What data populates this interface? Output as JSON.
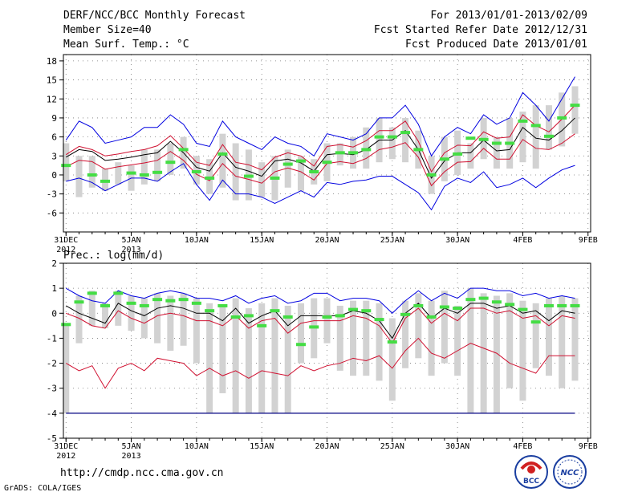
{
  "header": {
    "title_left": "DERF/NCC/BCC Monthly Forecast",
    "member_size": "Member Size=40",
    "variable": "Mean Surf. Temp.: °C",
    "title_right": "For 2013/01/01-2013/02/09",
    "fcst_started": "Fcst Started Refer Date 2012/12/31",
    "fcst_produced": "Fcst Produced Date 2013/01/01"
  },
  "footer": {
    "url": "http://cmdp.ncc.cma.gov.cn",
    "grads": "GrADS: COLA/IGES",
    "logo_bcc": "BCC",
    "logo_ncc": "NCC"
  },
  "colors": {
    "max": "#0000e0",
    "mean": "#000000",
    "band": "#d01030",
    "box": "#d2d2d2",
    "obs": "#44dd44",
    "zero": "#000080"
  },
  "chart_data": [
    {
      "type": "line",
      "title": "Mean Surf. Temp.: °C",
      "x": [
        1,
        2,
        3,
        4,
        5,
        6,
        7,
        8,
        9,
        10,
        11,
        12,
        13,
        14,
        15,
        16,
        17,
        18,
        19,
        20,
        21,
        22,
        23,
        24,
        25,
        26,
        27,
        28,
        29,
        30,
        31,
        32,
        33,
        34,
        35,
        36,
        37,
        38,
        39,
        40
      ],
      "xtick_labels": [
        {
          "x": 1,
          "text": "31DEC",
          "sub": "2012"
        },
        {
          "x": 6,
          "text": "5JAN",
          "sub": "2013"
        },
        {
          "x": 11,
          "text": "10JAN"
        },
        {
          "x": 16,
          "text": "15JAN"
        },
        {
          "x": 21,
          "text": "20JAN"
        },
        {
          "x": 26,
          "text": "25JAN"
        },
        {
          "x": 31,
          "text": "30JAN"
        },
        {
          "x": 36,
          "text": "4FEB"
        },
        {
          "x": 41,
          "text": "9FEB"
        }
      ],
      "ylim": [
        -9,
        19
      ],
      "yticks": [
        -6,
        -3,
        0,
        3,
        6,
        9,
        12,
        15,
        18
      ],
      "series": [
        {
          "name": "max",
          "values": [
            5.5,
            8.5,
            7.5,
            5,
            5.5,
            6,
            7.5,
            7.5,
            9.5,
            8,
            5,
            4.5,
            8.5,
            6,
            5,
            4,
            6,
            5,
            4.5,
            3,
            6.5,
            6,
            5.5,
            6.5,
            9,
            9,
            11,
            8,
            3,
            6,
            7.5,
            6.5,
            9.5,
            8,
            9,
            13,
            11,
            8.5,
            12,
            15.5
          ]
        },
        {
          "name": "band_upper",
          "values": [
            3.2,
            4.5,
            4,
            3,
            3.3,
            3.7,
            4,
            4.6,
            6.2,
            4.2,
            2,
            1.5,
            4.8,
            2,
            1.6,
            0.8,
            2.8,
            3.5,
            3,
            1.4,
            4.5,
            4.8,
            4.4,
            5.4,
            7,
            7,
            8.5,
            5.3,
            0.5,
            3.5,
            4.7,
            4.6,
            6.8,
            5.8,
            6,
            9.5,
            7.8,
            6.8,
            8.8,
            11
          ]
        },
        {
          "name": "mean",
          "values": [
            2.8,
            4,
            3.7,
            2.3,
            2.5,
            2.8,
            3.2,
            3.5,
            5.3,
            3.5,
            1.2,
            0.6,
            3.5,
            1.2,
            0.6,
            -0.2,
            2.2,
            2.5,
            1.9,
            0.6,
            3.2,
            3.4,
            3.2,
            4,
            5.5,
            5.5,
            7,
            4,
            -0.5,
            2.2,
            3.5,
            3.5,
            5.5,
            3.8,
            4,
            7.5,
            5.8,
            5.5,
            7,
            9
          ]
        },
        {
          "name": "band_lower",
          "values": [
            1.3,
            2.3,
            2.1,
            0.9,
            1.3,
            1.6,
            1.9,
            2.3,
            3.7,
            2.3,
            0.1,
            -0.9,
            1.8,
            -0.2,
            -0.7,
            -1.3,
            0.5,
            1.1,
            0.5,
            -0.8,
            1.8,
            2.1,
            1.8,
            2.6,
            4,
            4.4,
            5.1,
            2.8,
            -1.7,
            0.5,
            2,
            2.1,
            4.2,
            2.5,
            2.5,
            5.6,
            4.2,
            4,
            5,
            6.5
          ]
        },
        {
          "name": "min",
          "values": [
            -1,
            -0.5,
            -1.2,
            -2.5,
            -1.5,
            -0.5,
            -0.5,
            -1,
            0.5,
            1.8,
            -1.5,
            -4,
            -0.8,
            -3,
            -3,
            -3.5,
            -4.5,
            -3.5,
            -2.5,
            -3.5,
            -1.2,
            -1.5,
            -1,
            -0.8,
            -0.2,
            -0.2,
            -1.5,
            -2.8,
            -5.5,
            -1.8,
            -0.5,
            -1.2,
            0.5,
            -2,
            -1.5,
            -0.5,
            -2,
            -0.5,
            0.8,
            1.5
          ]
        },
        {
          "name": "obs",
          "values": [
            1.5,
            null,
            0,
            -1,
            null,
            0.3,
            0,
            0.4,
            2,
            4,
            0.5,
            -0.5,
            3.3,
            null,
            -0.2,
            null,
            -0.5,
            1.7,
            2.2,
            0.5,
            2,
            3.5,
            3.5,
            4,
            6,
            6,
            6.7,
            4,
            0,
            2.5,
            3.3,
            5.8,
            5.6,
            5,
            5,
            8.5,
            7.8,
            6.1,
            9,
            11
          ]
        }
      ],
      "boxes": [
        [
          -1,
          5
        ],
        [
          -3.5,
          3
        ],
        [
          -2,
          3
        ],
        [
          -2.5,
          1
        ],
        [
          -1.5,
          2
        ],
        [
          -2.5,
          1.5
        ],
        [
          -1.5,
          4
        ],
        [
          -1,
          4
        ],
        [
          0,
          5
        ],
        [
          1,
          6
        ],
        [
          -1.5,
          3
        ],
        [
          -3,
          2.5
        ],
        [
          -2,
          6.5
        ],
        [
          -4,
          5
        ],
        [
          -4,
          4
        ],
        [
          -3.5,
          2
        ],
        [
          -4,
          3
        ],
        [
          -2,
          4
        ],
        [
          -2.5,
          3
        ],
        [
          -1.5,
          2.5
        ],
        [
          -1,
          5
        ],
        [
          1.5,
          5
        ],
        [
          1,
          6
        ],
        [
          1,
          7.5
        ],
        [
          2,
          9
        ],
        [
          2.5,
          7.5
        ],
        [
          2,
          9
        ],
        [
          1,
          7
        ],
        [
          -3,
          3
        ],
        [
          -1,
          6
        ],
        [
          0,
          7
        ],
        [
          1,
          5
        ],
        [
          2.5,
          9
        ],
        [
          1,
          6
        ],
        [
          1,
          9
        ],
        [
          2,
          10
        ],
        [
          1,
          11
        ],
        [
          4,
          11
        ],
        [
          4.5,
          13
        ],
        [
          6.5,
          14
        ]
      ]
    },
    {
      "type": "line",
      "title": "Prec.: log(mm/d)",
      "x": [
        1,
        2,
        3,
        4,
        5,
        6,
        7,
        8,
        9,
        10,
        11,
        12,
        13,
        14,
        15,
        16,
        17,
        18,
        19,
        20,
        21,
        22,
        23,
        24,
        25,
        26,
        27,
        28,
        29,
        30,
        31,
        32,
        33,
        34,
        35,
        36,
        37,
        38,
        39,
        40
      ],
      "xtick_labels": [
        {
          "x": 1,
          "text": "31DEC",
          "sub": "2012"
        },
        {
          "x": 6,
          "text": "5JAN",
          "sub": "2013"
        },
        {
          "x": 11,
          "text": "10JAN"
        },
        {
          "x": 16,
          "text": "15JAN"
        },
        {
          "x": 21,
          "text": "20JAN"
        },
        {
          "x": 26,
          "text": "25JAN"
        },
        {
          "x": 31,
          "text": "30JAN"
        },
        {
          "x": 36,
          "text": "4FEB"
        },
        {
          "x": 41,
          "text": "9FEB"
        }
      ],
      "ylim": [
        -5,
        2
      ],
      "yticks": [
        -5,
        -4,
        -3,
        -2,
        -1,
        0,
        1,
        2
      ],
      "reference_line": -4,
      "series": [
        {
          "name": "max",
          "values": [
            1,
            0.7,
            0.5,
            0.4,
            0.9,
            0.7,
            0.6,
            0.8,
            0.9,
            0.8,
            0.6,
            0.6,
            0.5,
            0.7,
            0.4,
            0.6,
            0.7,
            0.4,
            0.5,
            0.8,
            0.8,
            0.5,
            0.6,
            0.6,
            0.5,
            0,
            0.5,
            0.9,
            0.5,
            0.8,
            0.6,
            1,
            1,
            0.9,
            0.9,
            0.7,
            0.8,
            0.6,
            0.7,
            0.6
          ]
        },
        {
          "name": "mean",
          "values": [
            0.3,
            0,
            -0.2,
            -0.4,
            0.4,
            0.1,
            -0.1,
            0.2,
            0.3,
            0.2,
            0,
            0,
            -0.3,
            0.2,
            -0.4,
            -0.1,
            0.1,
            -0.5,
            -0.1,
            -0.1,
            -0.1,
            -0.1,
            0.1,
            0,
            -0.3,
            -1,
            0,
            0.4,
            -0.2,
            0.2,
            0,
            0.4,
            0.4,
            0.2,
            0.3,
            0,
            0.1,
            -0.3,
            0.1,
            0
          ]
        },
        {
          "name": "low_band",
          "values": [
            0,
            -0.2,
            -0.5,
            -0.6,
            0.1,
            -0.2,
            -0.4,
            -0.1,
            0,
            -0.1,
            -0.3,
            -0.3,
            -0.5,
            -0.1,
            -0.6,
            -0.3,
            -0.2,
            -0.8,
            -0.4,
            -0.3,
            -0.3,
            -0.3,
            -0.1,
            -0.2,
            -0.5,
            -1.2,
            -0.2,
            0.2,
            -0.4,
            0,
            -0.3,
            0.2,
            0.2,
            0,
            0.1,
            -0.2,
            -0.1,
            -0.5,
            -0.1,
            -0.2
          ]
        },
        {
          "name": "min",
          "values": [
            -2,
            -2.3,
            -2.1,
            -3,
            -2.2,
            -2,
            -2.3,
            -1.8,
            -1.9,
            -2,
            -2.5,
            -2.2,
            -2.5,
            -2.3,
            -2.6,
            -2.3,
            -2.4,
            -2.5,
            -2.1,
            -2.3,
            -2.1,
            -2,
            -1.8,
            -1.9,
            -1.7,
            -2.2,
            -1.5,
            -1,
            -1.6,
            -1.8,
            -1.5,
            -1.2,
            -1.4,
            -1.6,
            -2,
            -2.2,
            -2.4,
            -1.7,
            -1.7,
            -1.7
          ]
        },
        {
          "name": "obs",
          "values": [
            -0.45,
            0.45,
            0.8,
            0.3,
            0.8,
            0.4,
            0.3,
            0.55,
            0.5,
            0.55,
            0.4,
            0.1,
            0.3,
            -0.15,
            -0.1,
            -0.5,
            0.1,
            -0.15,
            -1.25,
            -0.55,
            -0.15,
            -0.1,
            0.15,
            0.1,
            -0.25,
            -1.15,
            -0.05,
            0.3,
            -0.15,
            0.25,
            0.2,
            0.55,
            0.6,
            0.45,
            0.35,
            0.15,
            -0.35,
            0.3,
            0.3,
            0.3
          ]
        }
      ],
      "boxes": [
        [
          -4,
          -0.4
        ],
        [
          -1.2,
          0.7
        ],
        [
          -0.5,
          0.9
        ],
        [
          -0.6,
          0.4
        ],
        [
          -0.5,
          0.9
        ],
        [
          -0.7,
          0.7
        ],
        [
          -1,
          0.6
        ],
        [
          -1.2,
          0.8
        ],
        [
          -1.5,
          0.7
        ],
        [
          -1.3,
          0.8
        ],
        [
          -2,
          0.6
        ],
        [
          -4,
          0.4
        ],
        [
          -3.2,
          0.3
        ],
        [
          -4,
          0.6
        ],
        [
          -4,
          0.2
        ],
        [
          -4,
          0.4
        ],
        [
          -4,
          0.6
        ],
        [
          -4,
          0.3
        ],
        [
          -2,
          0.4
        ],
        [
          -1.8,
          0.6
        ],
        [
          -1.2,
          0.6
        ],
        [
          -2.3,
          0.3
        ],
        [
          -2.5,
          0.5
        ],
        [
          -2.5,
          0.5
        ],
        [
          -2.7,
          0.4
        ],
        [
          -3.5,
          -0.2
        ],
        [
          -2.2,
          0.5
        ],
        [
          -1.8,
          0.8
        ],
        [
          -2.5,
          0.5
        ],
        [
          -2,
          0.9
        ],
        [
          -2.5,
          0.3
        ],
        [
          -4,
          1
        ],
        [
          -4,
          0.8
        ],
        [
          -4,
          0.7
        ],
        [
          -3,
          0.8
        ],
        [
          -3.5,
          0.5
        ],
        [
          -2.2,
          0.4
        ],
        [
          -2.5,
          0.6
        ],
        [
          -3,
          0.7
        ],
        [
          -2.7,
          0.6
        ]
      ]
    }
  ]
}
